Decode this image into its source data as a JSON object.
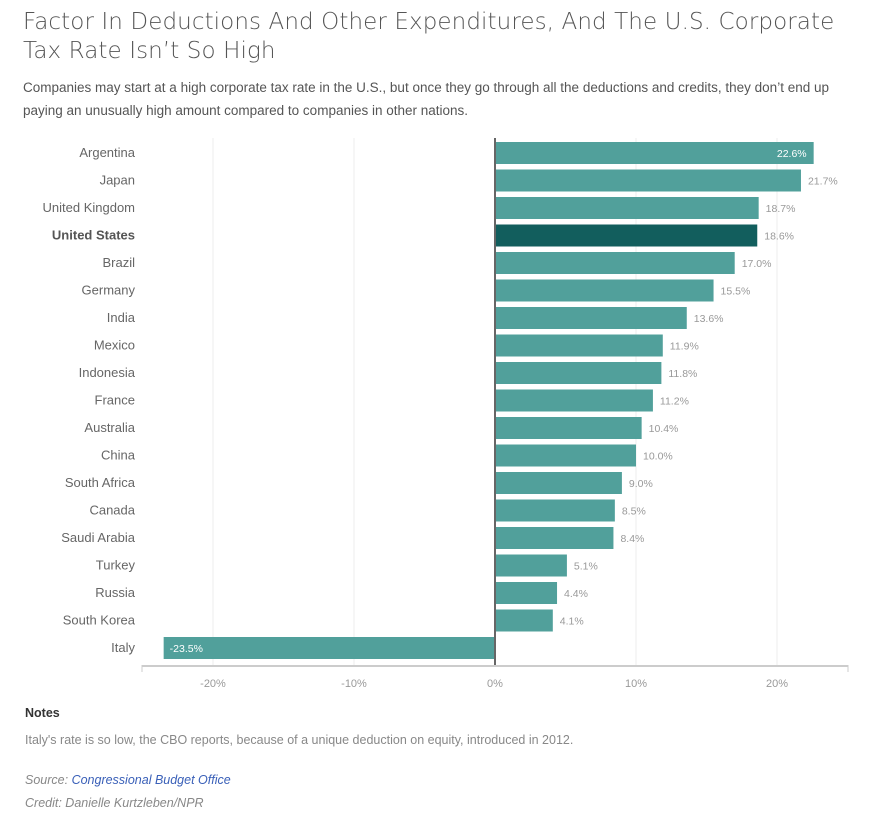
{
  "header": {
    "title": "Factor In Deductions And Other Expenditures, And The U.S. Corporate Tax Rate Isn’t So High",
    "subtitle": "Companies may start at a high corporate tax rate in the U.S., but once they go through all the deductions and credits, they don’t end up paying an unusually high amount compared to companies in other nations."
  },
  "chart_data": {
    "type": "bar",
    "orientation": "horizontal",
    "title": "Factor In Deductions And Other Expenditures, And The U.S. Corporate Tax Rate Isn’t So High",
    "xlabel": "",
    "ylabel": "",
    "unit": "%",
    "categories": [
      "Argentina",
      "Japan",
      "United Kingdom",
      "United States",
      "Brazil",
      "Germany",
      "India",
      "Mexico",
      "Indonesia",
      "France",
      "Australia",
      "China",
      "South Africa",
      "Canada",
      "Saudi Arabia",
      "Turkey",
      "Russia",
      "South Korea",
      "Italy"
    ],
    "values": [
      22.6,
      21.7,
      18.7,
      18.6,
      17.0,
      15.5,
      13.6,
      11.9,
      11.8,
      11.2,
      10.4,
      10.0,
      9.0,
      8.5,
      8.4,
      5.1,
      4.4,
      4.1,
      -23.5
    ],
    "data_labels": [
      "22.6%",
      "21.7%",
      "18.7%",
      "18.6%",
      "17.0%",
      "15.5%",
      "13.6%",
      "11.9%",
      "11.8%",
      "11.2%",
      "10.4%",
      "10.0%",
      "9.0%",
      "8.5%",
      "8.4%",
      "5.1%",
      "4.4%",
      "4.1%",
      "-23.5%"
    ],
    "highlight": "United States",
    "xlim": [
      -25,
      25
    ],
    "xticks": [
      -20,
      -10,
      0,
      10,
      20
    ],
    "xtick_labels": [
      "-20%",
      "-10%",
      "0%",
      "10%",
      "20%"
    ],
    "grid": true,
    "legend": "none",
    "colors": {
      "bar": "#51a09b",
      "highlight": "#125e5d",
      "label_inside": "#ffffff",
      "label_outside": "#999999",
      "zero_line": "#666666",
      "axis": "#cccccc",
      "grid": "#eeeeee"
    }
  },
  "footer": {
    "notes_heading": "Notes",
    "notes_text": "Italy's rate is so low, the CBO reports, because of a unique deduction on equity, introduced in 2012.",
    "source_prefix": "Source: ",
    "source_link": "Congressional Budget Office",
    "credit": "Credit: Danielle Kurtzleben/NPR"
  }
}
